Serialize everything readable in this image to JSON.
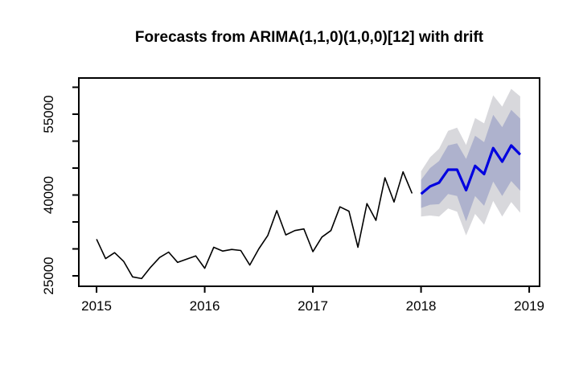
{
  "title": "Forecasts from ARIMA(1,1,0)(1,0,0)[12] with drift",
  "colors": {
    "background": "#ffffff",
    "axis": "#000000",
    "historical_line": "#000000",
    "forecast_line": "#0000e0",
    "band_80": "#aeb2cd",
    "band_95": "#d8d8dc"
  },
  "chart_data": {
    "type": "line",
    "title": "Forecasts from ARIMA(1,1,0)(1,0,0)[12] with drift",
    "xlabel": "",
    "ylabel": "",
    "xlim": [
      2014.836,
      2019.096
    ],
    "ylim": [
      23060,
      61716
    ],
    "grid": false,
    "legend": "none",
    "x_ticks": [
      {
        "value": 2015,
        "label": "2015"
      },
      {
        "value": 2016,
        "label": "2016"
      },
      {
        "value": 2017,
        "label": "2017"
      },
      {
        "value": 2018,
        "label": "2018"
      },
      {
        "value": 2019,
        "label": "2019"
      }
    ],
    "y_ticks": [
      {
        "value": 25000,
        "label": "25000"
      },
      {
        "value": 30000,
        "label": ""
      },
      {
        "value": 35000,
        "label": ""
      },
      {
        "value": 40000,
        "label": "40000"
      },
      {
        "value": 45000,
        "label": ""
      },
      {
        "value": 50000,
        "label": ""
      },
      {
        "value": 55000,
        "label": "55000"
      },
      {
        "value": 60000,
        "label": ""
      }
    ],
    "series": [
      {
        "name": "historical",
        "start": 2015.0,
        "step": 0.0833333,
        "frequency": "monthly",
        "period": "Jan 2015 - Dec 2017",
        "values": [
          31800,
          28200,
          29300,
          27700,
          24800,
          24500,
          26600,
          28400,
          29400,
          27500,
          28100,
          28700,
          26400,
          30300,
          29600,
          29900,
          29700,
          27000,
          30000,
          32500,
          37100,
          32600,
          33400,
          33700,
          29500,
          32200,
          33400,
          37800,
          37000,
          30300,
          38400,
          35300,
          43200,
          38700,
          44300,
          40300
        ]
      },
      {
        "name": "forecast-mean",
        "start": 2018.0,
        "step": 0.0833333,
        "frequency": "monthly",
        "period": "Jan 2018 - Dec 2018",
        "values": [
          40200,
          41600,
          42300,
          44700,
          44700,
          40900,
          45400,
          43900,
          48700,
          46200,
          49200,
          47500
        ]
      }
    ],
    "bands": [
      {
        "name": "interval-95",
        "level": "95%",
        "lower": [
          36000,
          36200,
          36000,
          37500,
          36900,
          32500,
          36500,
          34500,
          38900,
          36000,
          38700,
          36700
        ],
        "upper": [
          44400,
          47000,
          48600,
          51900,
          52500,
          49300,
          54300,
          53300,
          58500,
          56400,
          59700,
          58300
        ]
      },
      {
        "name": "interval-80",
        "level": "80%",
        "lower": [
          37600,
          38200,
          38300,
          40200,
          39800,
          35100,
          39800,
          38000,
          42500,
          39800,
          42600,
          40800
        ],
        "upper": [
          42800,
          45000,
          46300,
          49200,
          49600,
          46700,
          51000,
          49800,
          54900,
          52600,
          55800,
          54200
        ]
      }
    ]
  }
}
